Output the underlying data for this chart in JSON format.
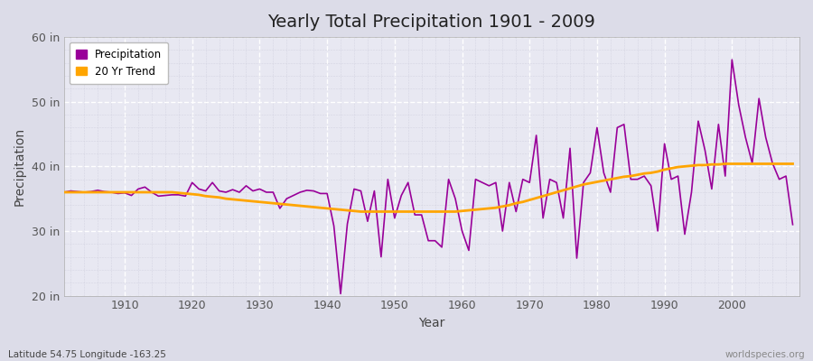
{
  "title": "Yearly Total Precipitation 1901 - 2009",
  "xlabel": "Year",
  "ylabel": "Precipitation",
  "subtitle_left": "Latitude 54.75 Longitude -163.25",
  "subtitle_right": "worldspecies.org",
  "years": [
    1901,
    1902,
    1903,
    1904,
    1905,
    1906,
    1907,
    1908,
    1909,
    1910,
    1911,
    1912,
    1913,
    1914,
    1915,
    1916,
    1917,
    1918,
    1919,
    1920,
    1921,
    1922,
    1923,
    1924,
    1925,
    1926,
    1927,
    1928,
    1929,
    1930,
    1931,
    1932,
    1933,
    1934,
    1935,
    1936,
    1937,
    1938,
    1939,
    1940,
    1941,
    1942,
    1943,
    1944,
    1945,
    1946,
    1947,
    1948,
    1949,
    1950,
    1951,
    1952,
    1953,
    1954,
    1955,
    1956,
    1957,
    1958,
    1959,
    1960,
    1961,
    1962,
    1963,
    1964,
    1965,
    1966,
    1967,
    1968,
    1969,
    1970,
    1971,
    1972,
    1973,
    1974,
    1975,
    1976,
    1977,
    1978,
    1979,
    1980,
    1981,
    1982,
    1983,
    1984,
    1985,
    1986,
    1987,
    1988,
    1989,
    1990,
    1991,
    1992,
    1993,
    1994,
    1995,
    1996,
    1997,
    1998,
    1999,
    2000,
    2001,
    2002,
    2003,
    2004,
    2005,
    2006,
    2007,
    2008,
    2009
  ],
  "precipitation": [
    36.0,
    36.2,
    36.1,
    36.0,
    36.1,
    36.3,
    36.1,
    36.0,
    35.8,
    35.9,
    35.5,
    36.5,
    36.8,
    36.0,
    35.4,
    35.5,
    35.6,
    35.6,
    35.4,
    37.5,
    36.5,
    36.2,
    37.5,
    36.2,
    36.0,
    36.4,
    36.0,
    37.0,
    36.2,
    36.5,
    36.0,
    36.0,
    33.5,
    35.0,
    35.5,
    36.0,
    36.3,
    36.2,
    35.8,
    35.8,
    30.8,
    20.3,
    31.1,
    36.5,
    36.2,
    31.5,
    36.2,
    26.0,
    38.0,
    32.0,
    35.5,
    37.5,
    32.5,
    32.5,
    28.5,
    28.5,
    27.5,
    38.0,
    35.0,
    30.0,
    27.0,
    38.0,
    37.5,
    37.0,
    37.5,
    30.0,
    37.5,
    33.0,
    38.0,
    37.5,
    44.8,
    32.0,
    38.0,
    37.5,
    32.0,
    42.8,
    25.8,
    37.5,
    39.0,
    46.0,
    39.0,
    36.0,
    46.0,
    46.5,
    38.0,
    38.0,
    38.5,
    37.0,
    30.0,
    43.5,
    38.0,
    38.5,
    29.5,
    36.0,
    47.0,
    42.5,
    36.5,
    46.5,
    38.5,
    56.5,
    49.5,
    44.5,
    40.5,
    50.5,
    44.5,
    40.5,
    38.0,
    38.5,
    31.0
  ],
  "trend": [
    36.0,
    36.0,
    36.0,
    36.0,
    36.0,
    36.0,
    36.0,
    36.0,
    36.0,
    36.0,
    36.0,
    36.0,
    36.0,
    36.0,
    36.0,
    36.0,
    36.0,
    35.9,
    35.8,
    35.7,
    35.6,
    35.4,
    35.3,
    35.2,
    35.0,
    34.9,
    34.8,
    34.7,
    34.6,
    34.5,
    34.4,
    34.3,
    34.2,
    34.1,
    34.0,
    33.9,
    33.8,
    33.7,
    33.6,
    33.5,
    33.4,
    33.3,
    33.2,
    33.1,
    33.0,
    33.0,
    33.0,
    33.0,
    33.0,
    33.0,
    33.0,
    33.0,
    33.0,
    33.0,
    33.0,
    33.0,
    33.0,
    33.0,
    33.0,
    33.1,
    33.2,
    33.3,
    33.4,
    33.5,
    33.6,
    33.8,
    34.0,
    34.3,
    34.5,
    34.8,
    35.1,
    35.4,
    35.7,
    36.0,
    36.3,
    36.6,
    36.9,
    37.2,
    37.4,
    37.6,
    37.8,
    38.0,
    38.2,
    38.4,
    38.5,
    38.7,
    38.9,
    39.0,
    39.2,
    39.5,
    39.7,
    39.9,
    40.0,
    40.1,
    40.2,
    40.2,
    40.3,
    40.3,
    40.4,
    40.4,
    40.4,
    40.4,
    40.4,
    40.4,
    40.4,
    40.4,
    40.4,
    40.4,
    40.4
  ],
  "precip_color": "#990099",
  "trend_color": "#FFA500",
  "bg_color": "#dcdce8",
  "plot_bg_color": "#e8e8f2",
  "grid_color_major": "#ffffff",
  "grid_color_minor": "#d0d0de",
  "ylim": [
    20,
    60
  ],
  "yticks": [
    20,
    30,
    40,
    50,
    60
  ],
  "ytick_labels": [
    "20 in",
    "30 in",
    "40 in",
    "50 in",
    "60 in"
  ],
  "xlim_left": 1901,
  "xlim_right": 2010,
  "xticks": [
    1910,
    1920,
    1930,
    1940,
    1950,
    1960,
    1970,
    1980,
    1990,
    2000
  ],
  "legend_labels": [
    "Precipitation",
    "20 Yr Trend"
  ]
}
